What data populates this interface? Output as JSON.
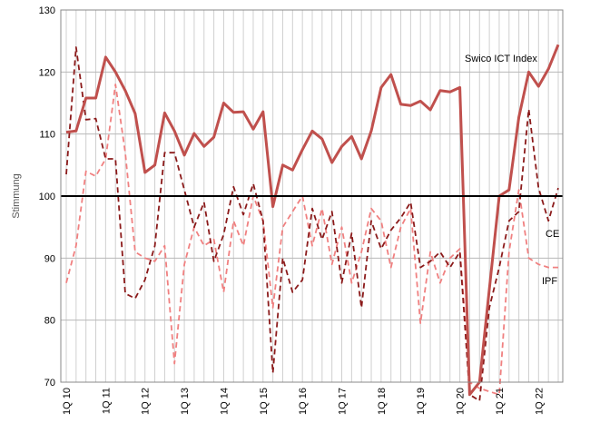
{
  "chart_data": {
    "type": "line",
    "title": "",
    "xlabel": "",
    "ylabel": "Stimmung",
    "ylim": [
      70,
      130
    ],
    "yticks": [
      70,
      80,
      90,
      100,
      110,
      120,
      130
    ],
    "x_start": "1Q 10",
    "x_end": "2Q 22",
    "xtick_labels": [
      "1Q 10",
      "1Q 11",
      "1Q 12",
      "1Q 13",
      "1Q 14",
      "1Q 15",
      "1Q 16",
      "1Q 17",
      "1Q 18",
      "1Q 19",
      "1Q 20",
      "1Q 21",
      "1Q 22"
    ],
    "reference_line": 100,
    "grid": "vertical",
    "series": [
      {
        "name": "Swico ICT Index",
        "style": "solid",
        "color": "#c0504d",
        "values": [
          110.3,
          110.5,
          115.8,
          115.8,
          122.4,
          120.0,
          117.0,
          113.3,
          103.8,
          105.0,
          113.4,
          110.5,
          106.6,
          110.1,
          108.0,
          109.5,
          115.0,
          113.5,
          113.6,
          110.8,
          113.6,
          98.3,
          105.0,
          104.2,
          107.5,
          110.5,
          109.2,
          105.4,
          108.0,
          109.6,
          106.0,
          110.5,
          117.5,
          119.6,
          114.8,
          114.6,
          115.3,
          113.9,
          117.0,
          116.8,
          117.5,
          68.0,
          70.0,
          85.0,
          100.0,
          101.0,
          112.7,
          120.0,
          117.7,
          120.5,
          124.4
        ]
      },
      {
        "name": "CE",
        "style": "dashed",
        "color": "#8b1a1a",
        "values": [
          103.5,
          124.0,
          112.3,
          112.5,
          106.0,
          106.0,
          84.3,
          83.5,
          86.5,
          92.0,
          107.0,
          107.0,
          101.0,
          95.0,
          99.0,
          89.5,
          93.8,
          101.5,
          97.0,
          102.0,
          96.0,
          71.5,
          90.0,
          84.5,
          86.5,
          98.0,
          93.0,
          97.5,
          86.0,
          94.0,
          82.0,
          96.0,
          91.5,
          94.5,
          96.5,
          99.0,
          88.5,
          89.5,
          91.0,
          88.5,
          91.0,
          68.0,
          67.0,
          82.0,
          88.5,
          96.0,
          97.5,
          114.0,
          101.3,
          96.0,
          101.3
        ]
      },
      {
        "name": "IPF",
        "style": "dashed",
        "color": "#f08080",
        "values": [
          86.0,
          92.0,
          104.0,
          103.2,
          106.0,
          118.0,
          107.0,
          91.0,
          90.0,
          89.5,
          92.0,
          73.0,
          89.0,
          95.0,
          92.0,
          93.0,
          84.5,
          96.0,
          92.0,
          100.0,
          96.0,
          82.0,
          95.0,
          97.5,
          100.0,
          92.0,
          98.0,
          89.0,
          95.0,
          86.0,
          91.0,
          98.0,
          96.0,
          88.5,
          95.0,
          98.0,
          79.5,
          91.0,
          86.0,
          90.0,
          91.5,
          70.0,
          69.0,
          68.5,
          68.0,
          91.0,
          101.0,
          90.0,
          89.0,
          88.5,
          88.5
        ]
      }
    ],
    "annotations": [
      "Swico ICT Index",
      "CE",
      "IPF"
    ]
  }
}
